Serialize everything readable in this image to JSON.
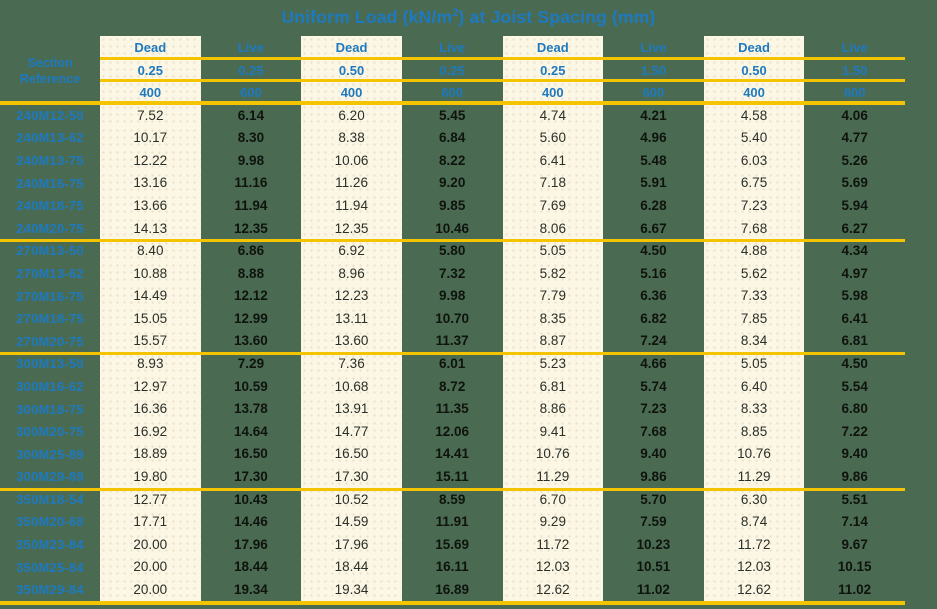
{
  "title": {
    "pre": "Uniform Load (kN/m",
    "sup": "2",
    "post": ") at Joist Spacing (mm)"
  },
  "colors": {
    "background_green": "#4a6b51",
    "column_cream": "#fcf6e4",
    "separator_gold": "#f4c400",
    "heading_blue": "#1d79c0",
    "dead_value_text": "#2a2f28",
    "live_value_text": "#0e130e"
  },
  "table": {
    "section_label": "Section Reference",
    "columns": [
      {
        "type": "Dead",
        "load": "0.25",
        "spacing": "400"
      },
      {
        "type": "Live",
        "load": "0.25",
        "spacing": "600"
      },
      {
        "type": "Dead",
        "load": "0.50",
        "spacing": "400"
      },
      {
        "type": "Live",
        "load": "0.25",
        "spacing": "600"
      },
      {
        "type": "Dead",
        "load": "0.25",
        "spacing": "400"
      },
      {
        "type": "Live",
        "load": "1.50",
        "spacing": "600"
      },
      {
        "type": "Dead",
        "load": "0.50",
        "spacing": "400"
      },
      {
        "type": "Live",
        "load": "1.50",
        "spacing": "600"
      }
    ],
    "groups": [
      {
        "rows": [
          {
            "section": "240M12-50",
            "values": [
              "7.52",
              "6.14",
              "6.20",
              "5.45",
              "4.74",
              "4.21",
              "4.58",
              "4.06"
            ]
          },
          {
            "section": "240M13-62",
            "values": [
              "10.17",
              "8.30",
              "8.38",
              "6.84",
              "5.60",
              "4.96",
              "5.40",
              "4.77"
            ]
          },
          {
            "section": "240M13-75",
            "values": [
              "12.22",
              "9.98",
              "10.06",
              "8.22",
              "6.41",
              "5.48",
              "6.03",
              "5.26"
            ]
          },
          {
            "section": "240M16-75",
            "values": [
              "13.16",
              "11.16",
              "11.26",
              "9.20",
              "7.18",
              "5.91",
              "6.75",
              "5.69"
            ]
          },
          {
            "section": "240M18-75",
            "values": [
              "13.66",
              "11.94",
              "11.94",
              "9.85",
              "7.69",
              "6.28",
              "7.23",
              "5.94"
            ]
          },
          {
            "section": "240M20-75",
            "values": [
              "14.13",
              "12.35",
              "12.35",
              "10.46",
              "8.06",
              "6.67",
              "7.68",
              "6.27"
            ]
          }
        ]
      },
      {
        "rows": [
          {
            "section": "270M13-50",
            "values": [
              "8.40",
              "6.86",
              "6.92",
              "5.80",
              "5.05",
              "4.50",
              "4.88",
              "4.34"
            ]
          },
          {
            "section": "270M13-62",
            "values": [
              "10.88",
              "8.88",
              "8.96",
              "7.32",
              "5.82",
              "5.16",
              "5.62",
              "4.97"
            ]
          },
          {
            "section": "270M16-75",
            "values": [
              "14.49",
              "12.12",
              "12.23",
              "9.98",
              "7.79",
              "6.36",
              "7.33",
              "5.98"
            ]
          },
          {
            "section": "270M18-75",
            "values": [
              "15.05",
              "12.99",
              "13.11",
              "10.70",
              "8.35",
              "6.82",
              "7.85",
              "6.41"
            ]
          },
          {
            "section": "270M20-75",
            "values": [
              "15.57",
              "13.60",
              "13.60",
              "11.37",
              "8.87",
              "7.24",
              "8.34",
              "6.81"
            ]
          }
        ]
      },
      {
        "rows": [
          {
            "section": "300M13-50",
            "values": [
              "8.93",
              "7.29",
              "7.36",
              "6.01",
              "5.23",
              "4.66",
              "5.05",
              "4.50"
            ]
          },
          {
            "section": "300M16-62",
            "values": [
              "12.97",
              "10.59",
              "10.68",
              "8.72",
              "6.81",
              "5.74",
              "6.40",
              "5.54"
            ]
          },
          {
            "section": "300M18-75",
            "values": [
              "16.36",
              "13.78",
              "13.91",
              "11.35",
              "8.86",
              "7.23",
              "8.33",
              "6.80"
            ]
          },
          {
            "section": "300M20-75",
            "values": [
              "16.92",
              "14.64",
              "14.77",
              "12.06",
              "9.41",
              "7.68",
              "8.85",
              "7.22"
            ]
          },
          {
            "section": "300M25-89",
            "values": [
              "18.89",
              "16.50",
              "16.50",
              "14.41",
              "10.76",
              "9.40",
              "10.76",
              "9.40"
            ]
          },
          {
            "section": "300M29-89",
            "values": [
              "19.80",
              "17.30",
              "17.30",
              "15.11",
              "11.29",
              "9.86",
              "11.29",
              "9.86"
            ]
          }
        ]
      },
      {
        "rows": [
          {
            "section": "350M18-54",
            "values": [
              "12.77",
              "10.43",
              "10.52",
              "8.59",
              "6.70",
              "5.70",
              "6.30",
              "5.51"
            ]
          },
          {
            "section": "350M20-68",
            "values": [
              "17.71",
              "14.46",
              "14.59",
              "11.91",
              "9.29",
              "7.59",
              "8.74",
              "7.14"
            ]
          },
          {
            "section": "350M23-84",
            "values": [
              "20.00",
              "17.96",
              "17.96",
              "15.69",
              "11.72",
              "10.23",
              "11.72",
              "9.67"
            ]
          },
          {
            "section": "350M25-84",
            "values": [
              "20.00",
              "18.44",
              "18.44",
              "16.11",
              "12.03",
              "10.51",
              "12.03",
              "10.15"
            ]
          },
          {
            "section": "350M29-84",
            "values": [
              "20.00",
              "19.34",
              "19.34",
              "16.89",
              "12.62",
              "11.02",
              "12.62",
              "11.02"
            ]
          }
        ]
      }
    ]
  }
}
